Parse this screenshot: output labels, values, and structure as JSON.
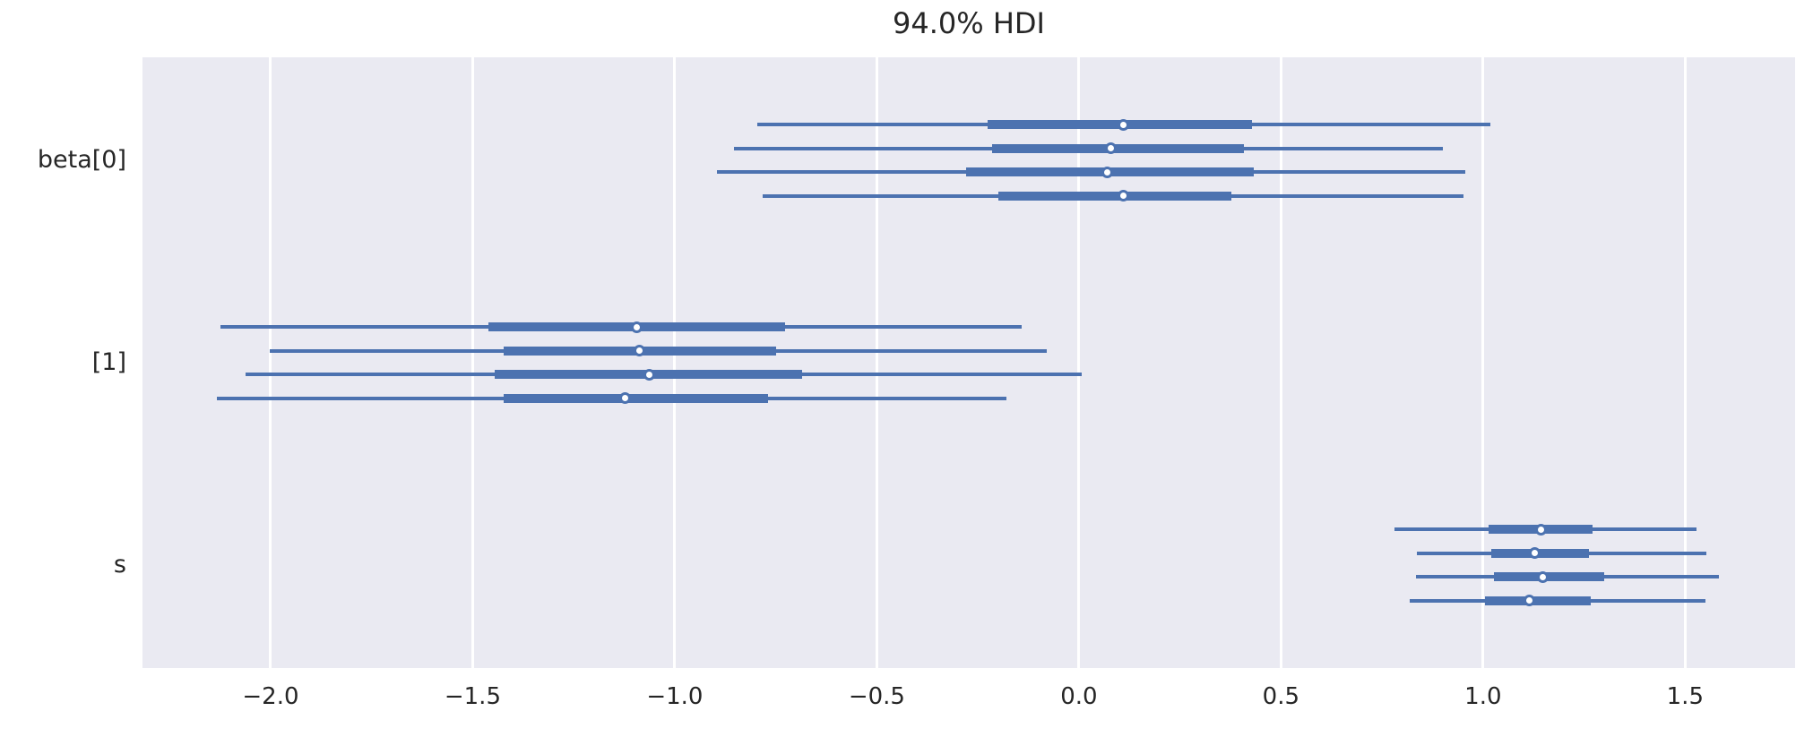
{
  "title": "94.0% HDI",
  "colors": {
    "line": "#4c72b0",
    "marker_face": "#ffffff",
    "plot_background": "#eaeaf2",
    "grid": "#ffffff",
    "text": "#262626",
    "figure_background": "#ffffff"
  },
  "chart_data": {
    "type": "forest",
    "title": "94.0% HDI",
    "hdi_prob": 0.94,
    "orientation": "horizontal",
    "grid": "vertical white gridlines on light lavender axes background",
    "legend": "none",
    "xlim": [
      -2.317,
      1.772
    ],
    "xticks": [
      -2.0,
      -1.5,
      -1.0,
      -0.5,
      0.0,
      0.5,
      1.0,
      1.5
    ],
    "xtick_labels": [
      "−2.0",
      "−1.5",
      "−1.0",
      "−0.5",
      "0.0",
      "0.5",
      "1.0",
      "1.5"
    ],
    "variables": [
      {
        "label": "beta[0]",
        "chains": [
          {
            "hdi": [
              -0.795,
              1.018
            ],
            "quartile": [
              -0.226,
              0.428
            ],
            "median": 0.109
          },
          {
            "hdi": [
              -0.854,
              0.9
            ],
            "quartile": [
              -0.215,
              0.408
            ],
            "median": 0.08
          },
          {
            "hdi": [
              -0.896,
              0.956
            ],
            "quartile": [
              -0.279,
              0.432
            ],
            "median": 0.071
          },
          {
            "hdi": [
              -0.783,
              0.951
            ],
            "quartile": [
              -0.2,
              0.377
            ],
            "median": 0.111
          }
        ]
      },
      {
        "label": "[1]",
        "chains": [
          {
            "hdi": [
              -2.124,
              -0.142
            ],
            "quartile": [
              -1.461,
              -0.727
            ],
            "median": -1.095
          },
          {
            "hdi": [
              -2.002,
              -0.08
            ],
            "quartile": [
              -1.424,
              -0.749
            ],
            "median": -1.087
          },
          {
            "hdi": [
              -2.062,
              0.007
            ],
            "quartile": [
              -1.446,
              -0.685
            ],
            "median": -1.064
          },
          {
            "hdi": [
              -2.133,
              -0.18
            ],
            "quartile": [
              -1.424,
              -0.769
            ],
            "median": -1.122
          }
        ]
      },
      {
        "label": "s",
        "chains": [
          {
            "hdi": [
              0.78,
              1.528
            ],
            "quartile": [
              1.013,
              1.27
            ],
            "median": 1.144
          },
          {
            "hdi": [
              0.836,
              1.552
            ],
            "quartile": [
              1.02,
              1.262
            ],
            "median": 1.128
          },
          {
            "hdi": [
              0.834,
              1.583
            ],
            "quartile": [
              1.026,
              1.299
            ],
            "median": 1.148
          },
          {
            "hdi": [
              0.818,
              1.55
            ],
            "quartile": [
              1.004,
              1.266
            ],
            "median": 1.115
          }
        ]
      }
    ]
  }
}
